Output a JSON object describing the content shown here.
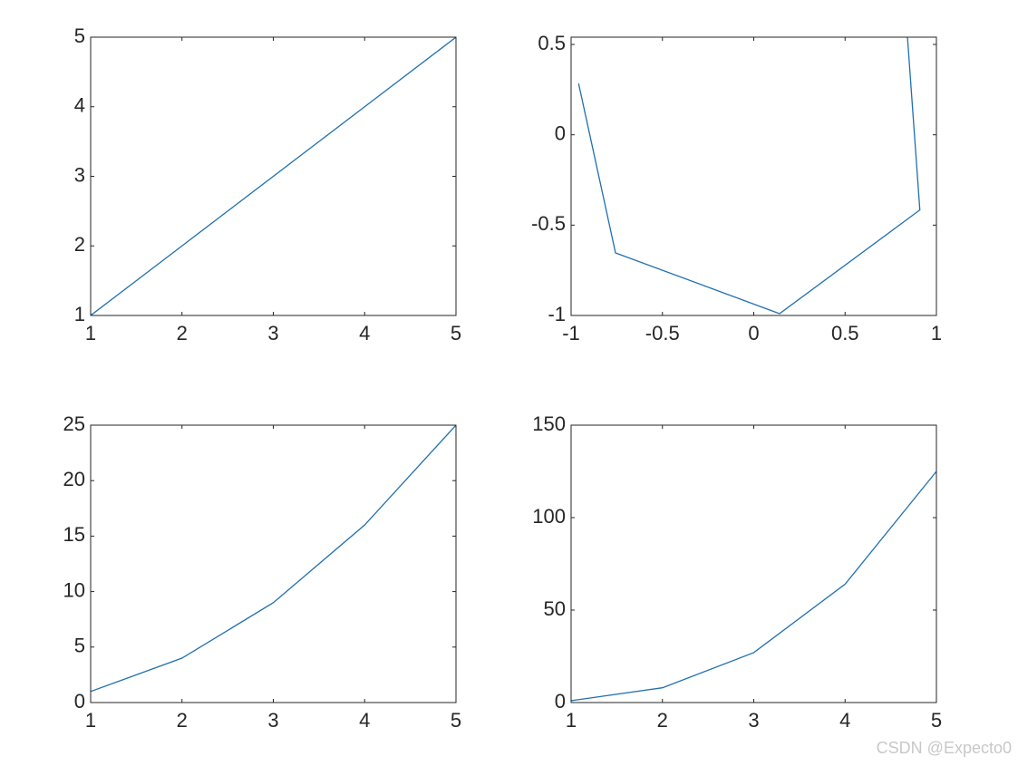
{
  "chart_data": [
    {
      "type": "line",
      "x": [
        1,
        2,
        3,
        4,
        5
      ],
      "values": [
        1,
        2,
        3,
        4,
        5
      ],
      "color": "#1f6fb0",
      "xlim": [
        1,
        5
      ],
      "ylim": [
        1,
        5
      ],
      "xticks": [
        1,
        2,
        3,
        4,
        5
      ],
      "yticks": [
        1,
        2,
        3,
        4,
        5
      ]
    },
    {
      "type": "line",
      "x": [
        0.8415,
        0.9093,
        0.1411,
        -0.7568,
        -0.9589
      ],
      "values": [
        0.5403,
        -0.4161,
        -0.99,
        -0.6536,
        0.2837
      ],
      "color": "#1f6fb0",
      "xlim": [
        -1,
        1
      ],
      "ylim": [
        -1,
        0.5403
      ],
      "xticks": [
        -1,
        -0.5,
        0,
        0.5,
        1
      ],
      "yticks": [
        -1,
        -0.5,
        0,
        0.5
      ]
    },
    {
      "type": "line",
      "x": [
        1,
        2,
        3,
        4,
        5
      ],
      "values": [
        1,
        4,
        9,
        16,
        25
      ],
      "color": "#1f6fb0",
      "xlim": [
        1,
        5
      ],
      "ylim": [
        0,
        25
      ],
      "xticks": [
        1,
        2,
        3,
        4,
        5
      ],
      "yticks": [
        0,
        5,
        10,
        15,
        20,
        25
      ]
    },
    {
      "type": "line",
      "x": [
        1,
        2,
        3,
        4,
        5
      ],
      "values": [
        1,
        8,
        27,
        64,
        125
      ],
      "color": "#1f6fb0",
      "xlim": [
        1,
        5
      ],
      "ylim": [
        0,
        150
      ],
      "xticks": [
        1,
        2,
        3,
        4,
        5
      ],
      "yticks": [
        0,
        50,
        100,
        150
      ]
    }
  ],
  "watermark": "CSDN @Expecto0"
}
